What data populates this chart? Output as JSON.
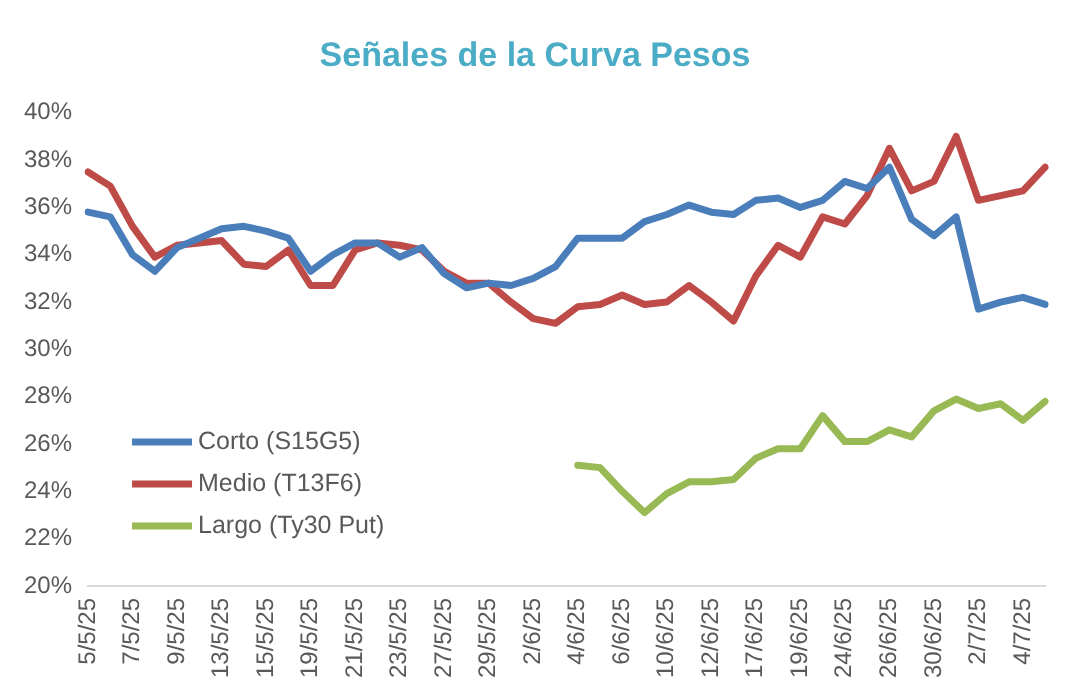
{
  "chart_data": {
    "type": "line",
    "title": "Señales de la Curva Pesos",
    "categories": [
      "5/5/25",
      null,
      "7/5/25",
      null,
      "9/5/25",
      null,
      "13/5/25",
      null,
      "15/5/25",
      null,
      "19/5/25",
      null,
      "21/5/25",
      null,
      "23/5/25",
      null,
      "27/5/25",
      null,
      "29/5/25",
      null,
      "2/6/25",
      null,
      "4/6/25",
      null,
      "6/6/25",
      null,
      "10/6/25",
      null,
      "12/6/25",
      null,
      "17/6/25",
      null,
      "19/6/25",
      null,
      "24/6/25",
      null,
      "26/6/25",
      null,
      "30/6/25",
      null,
      "2/7/25",
      null,
      "4/7/25",
      null
    ],
    "series": [
      {
        "name": "Corto (S15G5)",
        "color": "#4a7ebb",
        "values": [
          35.8,
          35.6,
          34.0,
          33.3,
          34.3,
          34.7,
          35.1,
          35.2,
          35.0,
          34.7,
          33.3,
          34.0,
          34.5,
          34.5,
          33.9,
          34.3,
          33.2,
          32.6,
          32.8,
          32.7,
          33.0,
          33.5,
          34.7,
          34.7,
          34.7,
          35.4,
          35.7,
          36.1,
          35.8,
          35.7,
          36.3,
          36.4,
          36.0,
          36.3,
          37.1,
          36.8,
          37.7,
          35.5,
          34.8,
          35.6,
          31.7,
          32.0,
          32.2,
          31.9
        ]
      },
      {
        "name": "Medio (T13F6)",
        "color": "#be4b48",
        "values": [
          37.5,
          36.9,
          35.2,
          33.9,
          34.4,
          34.5,
          34.6,
          33.6,
          33.5,
          34.2,
          32.7,
          32.7,
          34.2,
          34.5,
          34.4,
          34.2,
          33.3,
          32.8,
          32.8,
          32.0,
          31.3,
          31.1,
          31.8,
          31.9,
          32.3,
          31.9,
          32.0,
          32.7,
          32.0,
          31.2,
          33.1,
          34.4,
          33.9,
          35.6,
          35.3,
          36.5,
          38.5,
          36.7,
          37.1,
          39.0,
          36.3,
          36.5,
          36.7,
          37.7
        ]
      },
      {
        "name": "Largo (Ty30 Put)",
        "color": "#98b954",
        "values": [
          null,
          null,
          null,
          null,
          null,
          null,
          null,
          null,
          null,
          null,
          null,
          null,
          null,
          null,
          null,
          null,
          null,
          null,
          null,
          null,
          null,
          null,
          25.1,
          25.0,
          24.0,
          23.1,
          23.9,
          24.4,
          24.4,
          24.5,
          25.4,
          25.8,
          25.8,
          27.2,
          26.1,
          26.1,
          26.6,
          26.3,
          27.4,
          27.9,
          27.5,
          27.7,
          27.0,
          27.8
        ]
      }
    ],
    "ylim": [
      20,
      40
    ],
    "yticks": [
      {
        "value": 20,
        "label": "20%"
      },
      {
        "value": 22,
        "label": "22%"
      },
      {
        "value": 24,
        "label": "24%"
      },
      {
        "value": 26,
        "label": "26%"
      },
      {
        "value": 28,
        "label": "28%"
      },
      {
        "value": 30,
        "label": "30%"
      },
      {
        "value": 32,
        "label": "32%"
      },
      {
        "value": 34,
        "label": "34%"
      },
      {
        "value": 36,
        "label": "36%"
      },
      {
        "value": 38,
        "label": "38%"
      },
      {
        "value": 40,
        "label": "40%"
      }
    ],
    "grid": false,
    "legend": "bottom left",
    "marker": "none",
    "line_style": "solid"
  }
}
